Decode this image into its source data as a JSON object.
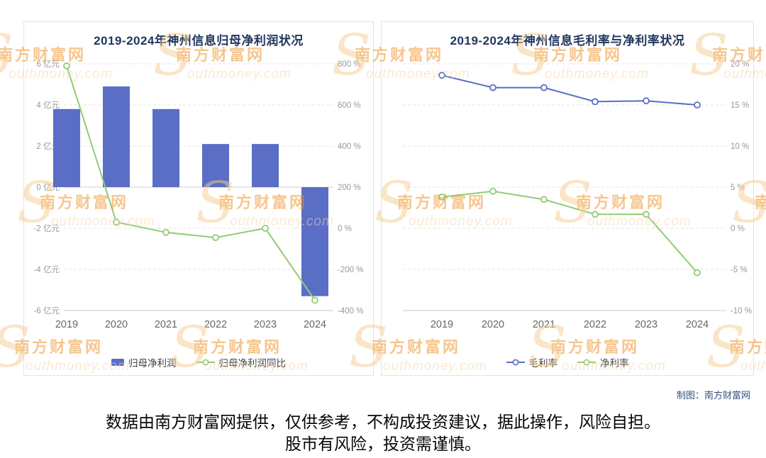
{
  "page": {
    "credit": "制图：南方财富网",
    "disclaimer_line1": "数据由南方财富网提供，仅供参考，不构成投资建议，据此操作，风险自担。",
    "disclaimer_line2": "股市有风险，投资需谨慎。",
    "watermark": {
      "initial": "S",
      "brand": "南方财富网",
      "domain": "outhmoney.com"
    },
    "colors": {
      "bar_blue": "#5a6ec6",
      "line_blue": "#5470c6",
      "line_green": "#91cc75",
      "title_navy": "#21375f",
      "watermark_orange": "#ee8f1f"
    }
  },
  "chart_data": [
    {
      "type": "bar",
      "title": "2019-2024年神州信息归母净利润状况",
      "categories": [
        "2019",
        "2020",
        "2021",
        "2022",
        "2023",
        "2024"
      ],
      "series": [
        {
          "name": "归母净利润",
          "type": "bar",
          "axis": "left",
          "color": "#5a6ec6",
          "values": [
            3.8,
            4.9,
            3.8,
            2.1,
            2.1,
            -5.3
          ]
        },
        {
          "name": "归母净利润同比",
          "type": "line",
          "axis": "right",
          "color": "#91cc75",
          "values": [
            790,
            30,
            -20,
            -45,
            0,
            -350
          ]
        }
      ],
      "left_axis": {
        "unit": "亿元",
        "min": -6,
        "max": 6,
        "tick_step": 2,
        "ticks": [
          "6 亿元",
          "4 亿元",
          "2 亿元",
          "0 亿元",
          "-2 亿元",
          "-4 亿元",
          "-6 亿元"
        ]
      },
      "right_axis": {
        "unit": "%",
        "min": -400,
        "max": 800,
        "tick_step": 200,
        "ticks": [
          "800 %",
          "600 %",
          "400 %",
          "200 %",
          "0 %",
          "-200 %",
          "-400 %"
        ]
      },
      "grid": true,
      "legend_position": "bottom"
    },
    {
      "type": "line",
      "title": "2019-2024年神州信息毛利率与净利率状况",
      "categories": [
        "2019",
        "2020",
        "2021",
        "2022",
        "2023",
        "2024"
      ],
      "series": [
        {
          "name": "毛利率",
          "type": "line",
          "axis": "right",
          "color": "#5470c6",
          "values": [
            18.6,
            17.1,
            17.1,
            15.4,
            15.5,
            15.0
          ]
        },
        {
          "name": "净利率",
          "type": "line",
          "axis": "right",
          "color": "#91cc75",
          "values": [
            3.8,
            4.5,
            3.5,
            1.7,
            1.7,
            -5.4
          ]
        }
      ],
      "right_axis": {
        "unit": "%",
        "min": -10,
        "max": 20,
        "tick_step": 5,
        "ticks": [
          "20 %",
          "15 %",
          "10 %",
          "5 %",
          "0 %",
          "-5 %",
          "-10 %"
        ]
      },
      "grid": true,
      "legend_position": "bottom"
    }
  ]
}
